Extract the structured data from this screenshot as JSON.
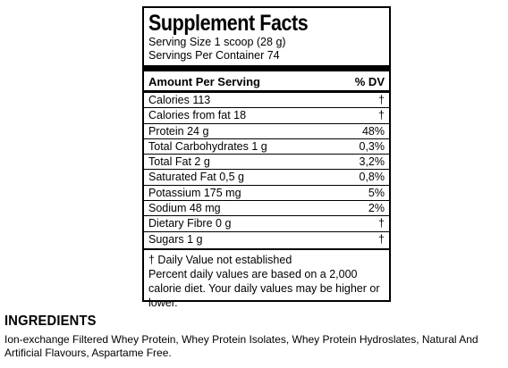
{
  "facts": {
    "title": "Supplement Facts",
    "serving_size": "Serving Size 1 scoop (28 g)",
    "servings_per_container": "Servings Per Container 74",
    "header_left": "Amount Per Serving",
    "header_right": "% DV",
    "nutrients": [
      {
        "name": "Calories  113",
        "dv": "†"
      },
      {
        "name": "Calories from fat  18",
        "dv": "†"
      },
      {
        "name": "Protein  24 g",
        "dv": "48%"
      },
      {
        "name": "Total Carbohydrates  1 g",
        "dv": "0,3%"
      },
      {
        "name": "Total Fat  2 g",
        "dv": "3,2%"
      },
      {
        "name": "Saturated Fat  0,5 g",
        "dv": "0,8%"
      },
      {
        "name": "Potassium  175 mg",
        "dv": "5%"
      },
      {
        "name": "Sodium  48 mg",
        "dv": "2%"
      },
      {
        "name": "Dietary Fibre  0 g",
        "dv": "†"
      },
      {
        "name": "Sugars  1 g",
        "dv": "†"
      }
    ],
    "footnote_dagger": "† Daily Value not established",
    "footnote_percent": "Percent daily values are based on a 2,000 calorie diet. Your daily values may be higher or lower."
  },
  "ingredients": {
    "heading": "INGREDIENTS",
    "text": "Ion-exchange Filtered Whey Protein, Whey Protein Isolates, Whey Protein Hydroslates, Natural And Artificial Flavours, Aspartame Free."
  }
}
